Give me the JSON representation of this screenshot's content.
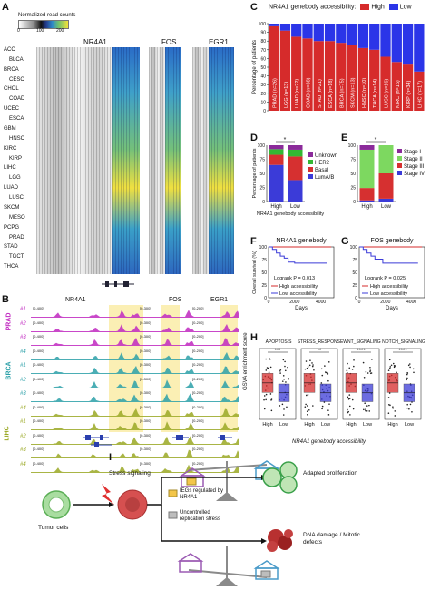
{
  "panels": {
    "A": {
      "label": "A",
      "colorbar_title": "Normalized read counts",
      "colorbar_ticks": [
        "0",
        "100",
        "200"
      ],
      "genes": [
        "NR4A1",
        "FOS",
        "EGR1"
      ],
      "cancers": [
        "ACC",
        "BLCA",
        "BRCA",
        "CESC",
        "CHOL",
        "COAD",
        "UCEC",
        "ESCA",
        "GBM",
        "HNSC",
        "KIRC",
        "KIRP",
        "LIHC",
        "LGG",
        "LUAD",
        "LUSC",
        "SKCM",
        "MESO",
        "PCPG",
        "PRAD",
        "STAD",
        "TGCT",
        "THCA"
      ]
    },
    "B": {
      "label": "B",
      "genes": [
        "NR4A1",
        "FOS",
        "EGR1"
      ],
      "groups": [
        {
          "name": "PRAD",
          "color": "#c028c0",
          "samples": [
            "#1",
            "#2",
            "#3"
          ]
        },
        {
          "name": "BRCA",
          "color": "#2ba0a8",
          "samples": [
            "#4",
            "#1",
            "#2",
            "#3"
          ]
        },
        {
          "name": "LIHC",
          "color": "#9aa824",
          "samples": [
            "#4",
            "#1",
            "#2",
            "#3",
            "#4"
          ]
        }
      ],
      "scales": [
        "[0-400]",
        "[0-300]",
        "[0-200]"
      ]
    },
    "C": {
      "label": "C",
      "legend_title": "NR4A1 genebody accessibility:",
      "legend_high": "High",
      "legend_low": "Low",
      "ylabel": "Percentage of patients",
      "y_ticks": [
        "0",
        "10",
        "20",
        "30",
        "40",
        "50",
        "60",
        "70",
        "80",
        "90",
        "100"
      ]
    },
    "D": {
      "label": "D",
      "ylabel": "Percentage of patients",
      "xlabel": "NR4A1 genebody accessibility",
      "legend": [
        "Unknown",
        "HER2",
        "Basal",
        "LumA/B"
      ],
      "y_ticks": [
        "0",
        "25",
        "50",
        "75",
        "100"
      ],
      "star": "*"
    },
    "E": {
      "label": "E",
      "legend": [
        "Stage I",
        "Stage II",
        "Stage III",
        "Stage IV"
      ],
      "y_ticks": [
        "0",
        "25",
        "50",
        "75",
        "100"
      ],
      "star": "*"
    },
    "F": {
      "label": "F",
      "title": "NR4A1 genebody",
      "ylabel": "Overall survival (%)",
      "xlabel": "Days",
      "stat": "Logrank P = 0.013",
      "legend_high": "High accessibility",
      "legend_low": "Low accessibility",
      "x_ticks": [
        "0",
        "2000",
        "4000"
      ],
      "y_ticks": [
        "0",
        "25",
        "50",
        "75",
        "100"
      ]
    },
    "G": {
      "label": "G",
      "title": "FOS genebody",
      "xlabel": "Days",
      "stat": "Logrank P = 0.025",
      "legend_high": "High accessibility",
      "legend_low": "Low accessibility",
      "x_ticks": [
        "0",
        "2000",
        "4000"
      ],
      "y_ticks": [
        "0",
        "25",
        "50",
        "75",
        "100"
      ]
    },
    "H": {
      "label": "H",
      "ylabel": "GSVA enrichment score",
      "xlabel": "NR4A1 genebody accessibility",
      "panels": [
        {
          "title": "APOPTOSIS",
          "stars": "***"
        },
        {
          "title": "STRESS_RESPONSE",
          "stars": "**"
        },
        {
          "title": "WNT_SIGNALING",
          "stars": "****"
        },
        {
          "title": "NOTCH_SIGNALING",
          "stars": "****"
        }
      ],
      "x_ticks": [
        "High",
        "Low"
      ]
    },
    "I": {
      "label": "I",
      "stress": "Stress signaling",
      "tumor": "Tumor cells",
      "legend_iegs": "IEGs regulated by NR4A1",
      "legend_unc": "Uncontrolled replication stress",
      "outcome_top": "Adapted proliferation",
      "outcome_bottom": "DNA damage / Mitotic defects"
    }
  },
  "chart_data": [
    {
      "type": "bar",
      "id": "C",
      "categories": [
        "PRAD (n=26)",
        "LGG (n=13)",
        "LUAD (n=22)",
        "COAD (n=38)",
        "STAD (n=21)",
        "ESCA (n=18)",
        "BRCA (n=75)",
        "SKCM (n=13)",
        "HNSC (n=10)",
        "THCA (n=14)",
        "LUSC (n=16)",
        "KIRC (n=16)",
        "KIRP (n=34)",
        "LIHC (n=17)"
      ],
      "series": [
        {
          "name": "High",
          "color": "#d62b2b",
          "values": [
            97,
            92,
            85,
            83,
            80,
            80,
            78,
            75,
            72,
            70,
            62,
            56,
            53,
            45
          ]
        },
        {
          "name": "Low",
          "color": "#2b35e8",
          "values": [
            3,
            8,
            15,
            17,
            20,
            20,
            22,
            25,
            28,
            30,
            38,
            44,
            47,
            55
          ]
        }
      ],
      "ylim": [
        0,
        100
      ]
    },
    {
      "type": "bar",
      "id": "D",
      "categories": [
        "High",
        "Low"
      ],
      "series": [
        {
          "name": "LumA/B",
          "color": "#3b3bd8",
          "values": [
            65,
            38
          ]
        },
        {
          "name": "Basal",
          "color": "#d63030",
          "values": [
            18,
            42
          ]
        },
        {
          "name": "HER2",
          "color": "#33b833",
          "values": [
            10,
            12
          ]
        },
        {
          "name": "Unknown",
          "color": "#8b2a9a",
          "values": [
            7,
            8
          ]
        }
      ],
      "ylim": [
        0,
        100
      ]
    },
    {
      "type": "bar",
      "id": "E",
      "categories": [
        "High",
        "Low"
      ],
      "series": [
        {
          "name": "Stage IV",
          "color": "#3b3bd8",
          "values": [
            2,
            5
          ]
        },
        {
          "name": "Stage III",
          "color": "#d63030",
          "values": [
            22,
            45
          ]
        },
        {
          "name": "Stage II",
          "color": "#7dd860",
          "values": [
            68,
            50
          ]
        },
        {
          "name": "Stage I",
          "color": "#8b2a9a",
          "values": [
            8,
            0
          ]
        }
      ],
      "ylim": [
        0,
        100
      ]
    },
    {
      "type": "line",
      "id": "F",
      "series": [
        {
          "name": "High accessibility",
          "color": "#d62b2b",
          "x": [
            0,
            4800
          ],
          "y": [
            100,
            100
          ]
        },
        {
          "name": "Low accessibility",
          "color": "#3b3bd8",
          "x": [
            0,
            300,
            600,
            900,
            1200,
            1500,
            2000,
            2500,
            3000,
            4500
          ],
          "y": [
            100,
            95,
            88,
            82,
            78,
            70,
            68,
            68,
            68,
            68
          ]
        }
      ],
      "xlim": [
        0,
        5000
      ],
      "ylim": [
        0,
        100
      ]
    },
    {
      "type": "line",
      "id": "G",
      "series": [
        {
          "name": "High accessibility",
          "color": "#d62b2b",
          "x": [
            0,
            4800
          ],
          "y": [
            100,
            100
          ]
        },
        {
          "name": "Low accessibility",
          "color": "#3b3bd8",
          "x": [
            0,
            300,
            600,
            900,
            1200,
            1800,
            2500,
            4500
          ],
          "y": [
            100,
            95,
            88,
            82,
            76,
            68,
            68,
            68
          ]
        }
      ],
      "xlim": [
        0,
        5000
      ],
      "ylim": [
        0,
        100
      ]
    }
  ]
}
